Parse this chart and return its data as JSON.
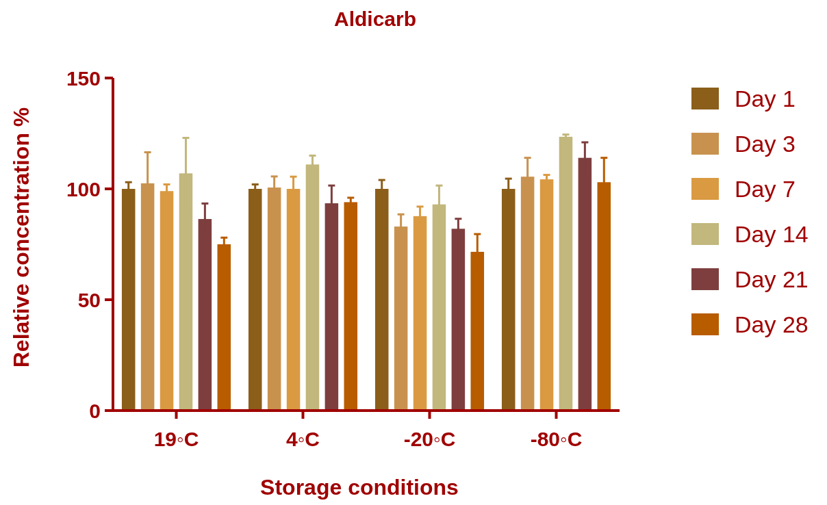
{
  "chart_data": {
    "type": "bar",
    "title": "Aldicarb",
    "xlabel": "Storage conditions",
    "ylabel": "Relative concentration %",
    "categories": [
      "19◦C",
      "4◦C",
      "-20◦C",
      "-80◦C"
    ],
    "series": [
      {
        "name": "Day 1",
        "color": "#8b5e1a",
        "values": [
          100,
          100,
          100,
          100
        ],
        "errors": [
          3,
          2,
          4,
          4.6
        ]
      },
      {
        "name": "Day 3",
        "color": "#c8924e",
        "values": [
          102.5,
          100.6,
          83,
          105.5
        ],
        "errors": [
          14,
          5,
          5.5,
          8.5
        ]
      },
      {
        "name": "Day 7",
        "color": "#da9a42",
        "values": [
          99,
          100,
          87.7,
          104.3
        ],
        "errors": [
          3,
          5.5,
          4.3,
          2
        ]
      },
      {
        "name": "Day 14",
        "color": "#c2b77c",
        "values": [
          107,
          111,
          93,
          123.5
        ],
        "errors": [
          16,
          4,
          8.5,
          1
        ]
      },
      {
        "name": "Day 21",
        "color": "#7e3e3e",
        "values": [
          86.4,
          93.5,
          82,
          114
        ],
        "errors": [
          7,
          8,
          4.5,
          7
        ]
      },
      {
        "name": "Day 28",
        "color": "#b85c00",
        "values": [
          75,
          94,
          71.6,
          103
        ],
        "errors": [
          3,
          2,
          8,
          11
        ]
      }
    ],
    "ylim": [
      0,
      150
    ],
    "yticks": [
      0,
      50,
      100,
      150
    ],
    "grid": false,
    "legend": "right"
  }
}
